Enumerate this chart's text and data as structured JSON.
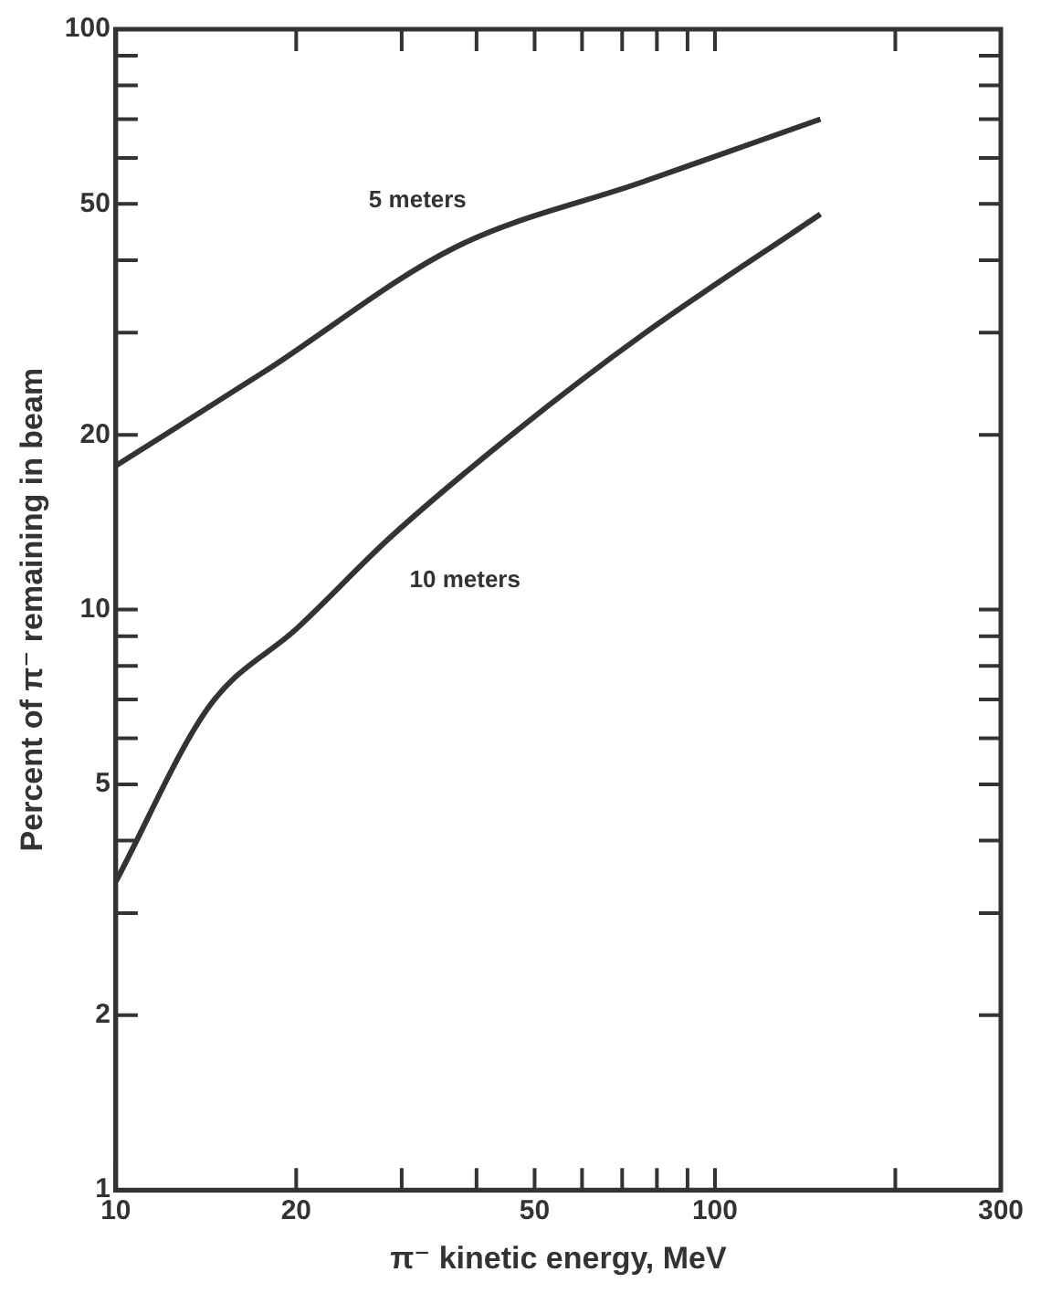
{
  "chart_data": {
    "type": "line",
    "xlabel": "π⁻ kinetic energy, MeV",
    "ylabel": "Percent of π⁻ remaining in beam",
    "log": "xy",
    "xlim": [
      10,
      300
    ],
    "ylim": [
      1,
      100
    ],
    "xticks": [
      10,
      20,
      {
        "value": 30,
        "label": null
      },
      {
        "value": 40,
        "label": null
      },
      50,
      {
        "value": 60,
        "label": null
      },
      {
        "value": 70,
        "label": null
      },
      {
        "value": 80,
        "label": null
      },
      {
        "value": 90,
        "label": null
      },
      100,
      {
        "value": 200,
        "label": null
      },
      300
    ],
    "yticks": [
      1,
      2,
      {
        "value": 3,
        "label": null
      },
      {
        "value": 4,
        "label": null
      },
      5,
      {
        "value": 6,
        "label": null
      },
      {
        "value": 7,
        "label": null
      },
      {
        "value": 8,
        "label": null
      },
      {
        "value": 9,
        "label": null
      },
      10,
      20,
      {
        "value": 30,
        "label": null
      },
      {
        "value": 40,
        "label": null
      },
      50,
      {
        "value": 60,
        "label": null
      },
      {
        "value": 70,
        "label": null
      },
      {
        "value": 80,
        "label": null
      },
      {
        "value": 90,
        "label": null
      },
      100
    ],
    "grid": false,
    "legend": false,
    "marker": "none",
    "line_style": "solid",
    "series": [
      {
        "name": "5 meters",
        "color": "#333333",
        "x": [
          10,
          17.8,
          36.7,
          75.9,
          150
        ],
        "values": [
          17.7,
          25.8,
          42,
          54.6,
          70
        ]
      },
      {
        "name": "10 meters",
        "color": "#333333",
        "x": [
          10,
          14.3,
          20.1,
          28.9,
          46.6,
          75.9,
          150
        ],
        "values": [
          3.4,
          6.8,
          9.3,
          13.4,
          20.3,
          29.8,
          48
        ]
      }
    ]
  }
}
